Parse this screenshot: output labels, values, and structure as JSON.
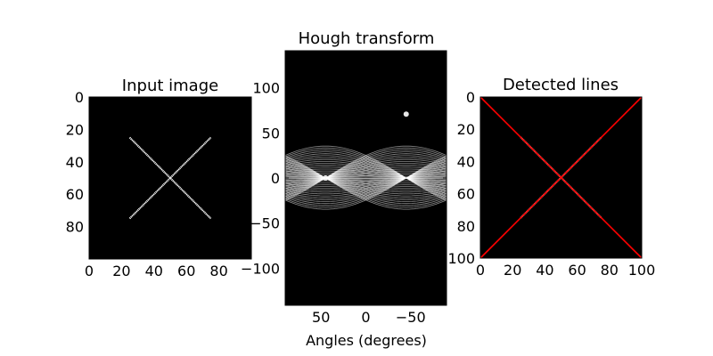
{
  "chart_data": [
    {
      "type": "image",
      "title": "Input image",
      "xlabel": "",
      "ylabel": "",
      "xlim": [
        0,
        100
      ],
      "ylim": [
        100,
        0
      ],
      "x_ticks": [
        0,
        20,
        40,
        60,
        80
      ],
      "y_ticks": [
        0,
        20,
        40,
        60,
        80
      ],
      "background": "#000000",
      "lines": [
        {
          "x": [
            25,
            75
          ],
          "y": [
            25,
            75
          ],
          "color": "#ffffff"
        },
        {
          "x": [
            25,
            75
          ],
          "y": [
            75,
            25
          ],
          "color": "#ffffff"
        }
      ]
    },
    {
      "type": "heatmap",
      "title": "Hough transform",
      "xlabel": "Angles (degrees)",
      "ylabel": "",
      "xlim": [
        90,
        -90
      ],
      "ylim": [
        -141,
        141
      ],
      "x_ticks": [
        50,
        0,
        -50
      ],
      "y_ticks": [
        -100,
        -50,
        0,
        50,
        100
      ],
      "background": "#000000",
      "colormap": "gray",
      "peaks": [
        {
          "angle": 45,
          "distance": 0
        },
        {
          "angle": -45,
          "distance": 70.7
        }
      ]
    },
    {
      "type": "image",
      "title": "Detected lines",
      "xlabel": "",
      "ylabel": "",
      "xlim": [
        0,
        100
      ],
      "ylim": [
        100,
        0
      ],
      "x_ticks": [
        0,
        20,
        40,
        60,
        80,
        100
      ],
      "y_ticks": [
        0,
        20,
        40,
        60,
        80,
        100
      ],
      "background": "#000000",
      "lines": [
        {
          "x": [
            25,
            75
          ],
          "y": [
            25,
            75
          ],
          "color": "#ffffff"
        },
        {
          "x": [
            25,
            75
          ],
          "y": [
            75,
            25
          ],
          "color": "#ffffff"
        }
      ],
      "detected_lines": [
        {
          "x": [
            0,
            100
          ],
          "y": [
            0,
            100
          ],
          "color": "#ff0000"
        },
        {
          "x": [
            0,
            100
          ],
          "y": [
            100,
            0
          ],
          "color": "#ff0000"
        }
      ]
    }
  ]
}
